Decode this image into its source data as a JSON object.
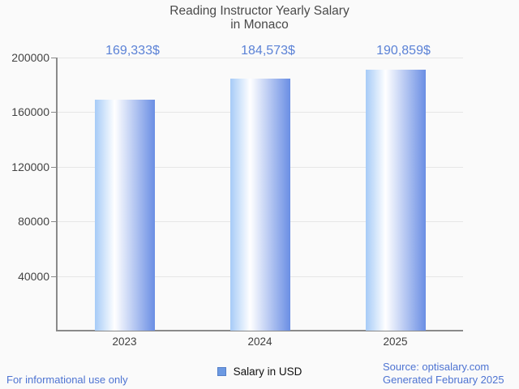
{
  "title": {
    "line1": "Reading Instructor Yearly Salary",
    "line2": "in Monaco"
  },
  "chart_data": {
    "type": "bar",
    "categories": [
      "2023",
      "2024",
      "2025"
    ],
    "values": [
      169333,
      184573,
      190859
    ],
    "value_labels": [
      "169,333$",
      "184,573$",
      "190,859$"
    ],
    "series": [
      {
        "name": "Salary in USD",
        "values": [
          169333,
          184573,
          190859
        ]
      }
    ],
    "title": "Reading Instructor Yearly Salary in Monaco",
    "xlabel": "",
    "ylabel": "",
    "ylim": [
      0,
      200000
    ],
    "y_ticks": [
      200000,
      160000,
      120000,
      80000,
      40000
    ],
    "grid": "horizontal",
    "legend_position": "bottom-center"
  },
  "legend": {
    "label": "Salary in USD"
  },
  "footer": {
    "disclaimer": "For informational use only",
    "source": "Source: optisalary.com",
    "generated": "Generated February 2025"
  },
  "colors": {
    "background": "#fafafa",
    "title_text": "#4a4a4a",
    "value_label_text": "#5b82d6",
    "axis_line": "#8a8a8a",
    "gridline": "#e6e6e6",
    "axis_label_text": "#444444",
    "bar_gradient_left": "#a6cbf7",
    "bar_gradient_mid": "#ffffff",
    "bar_gradient_right": "#6a8ee4",
    "legend_swatch_fill": "#6c99e2",
    "legend_swatch_border": "#5580c8",
    "footer_text": "#4e74d2"
  }
}
